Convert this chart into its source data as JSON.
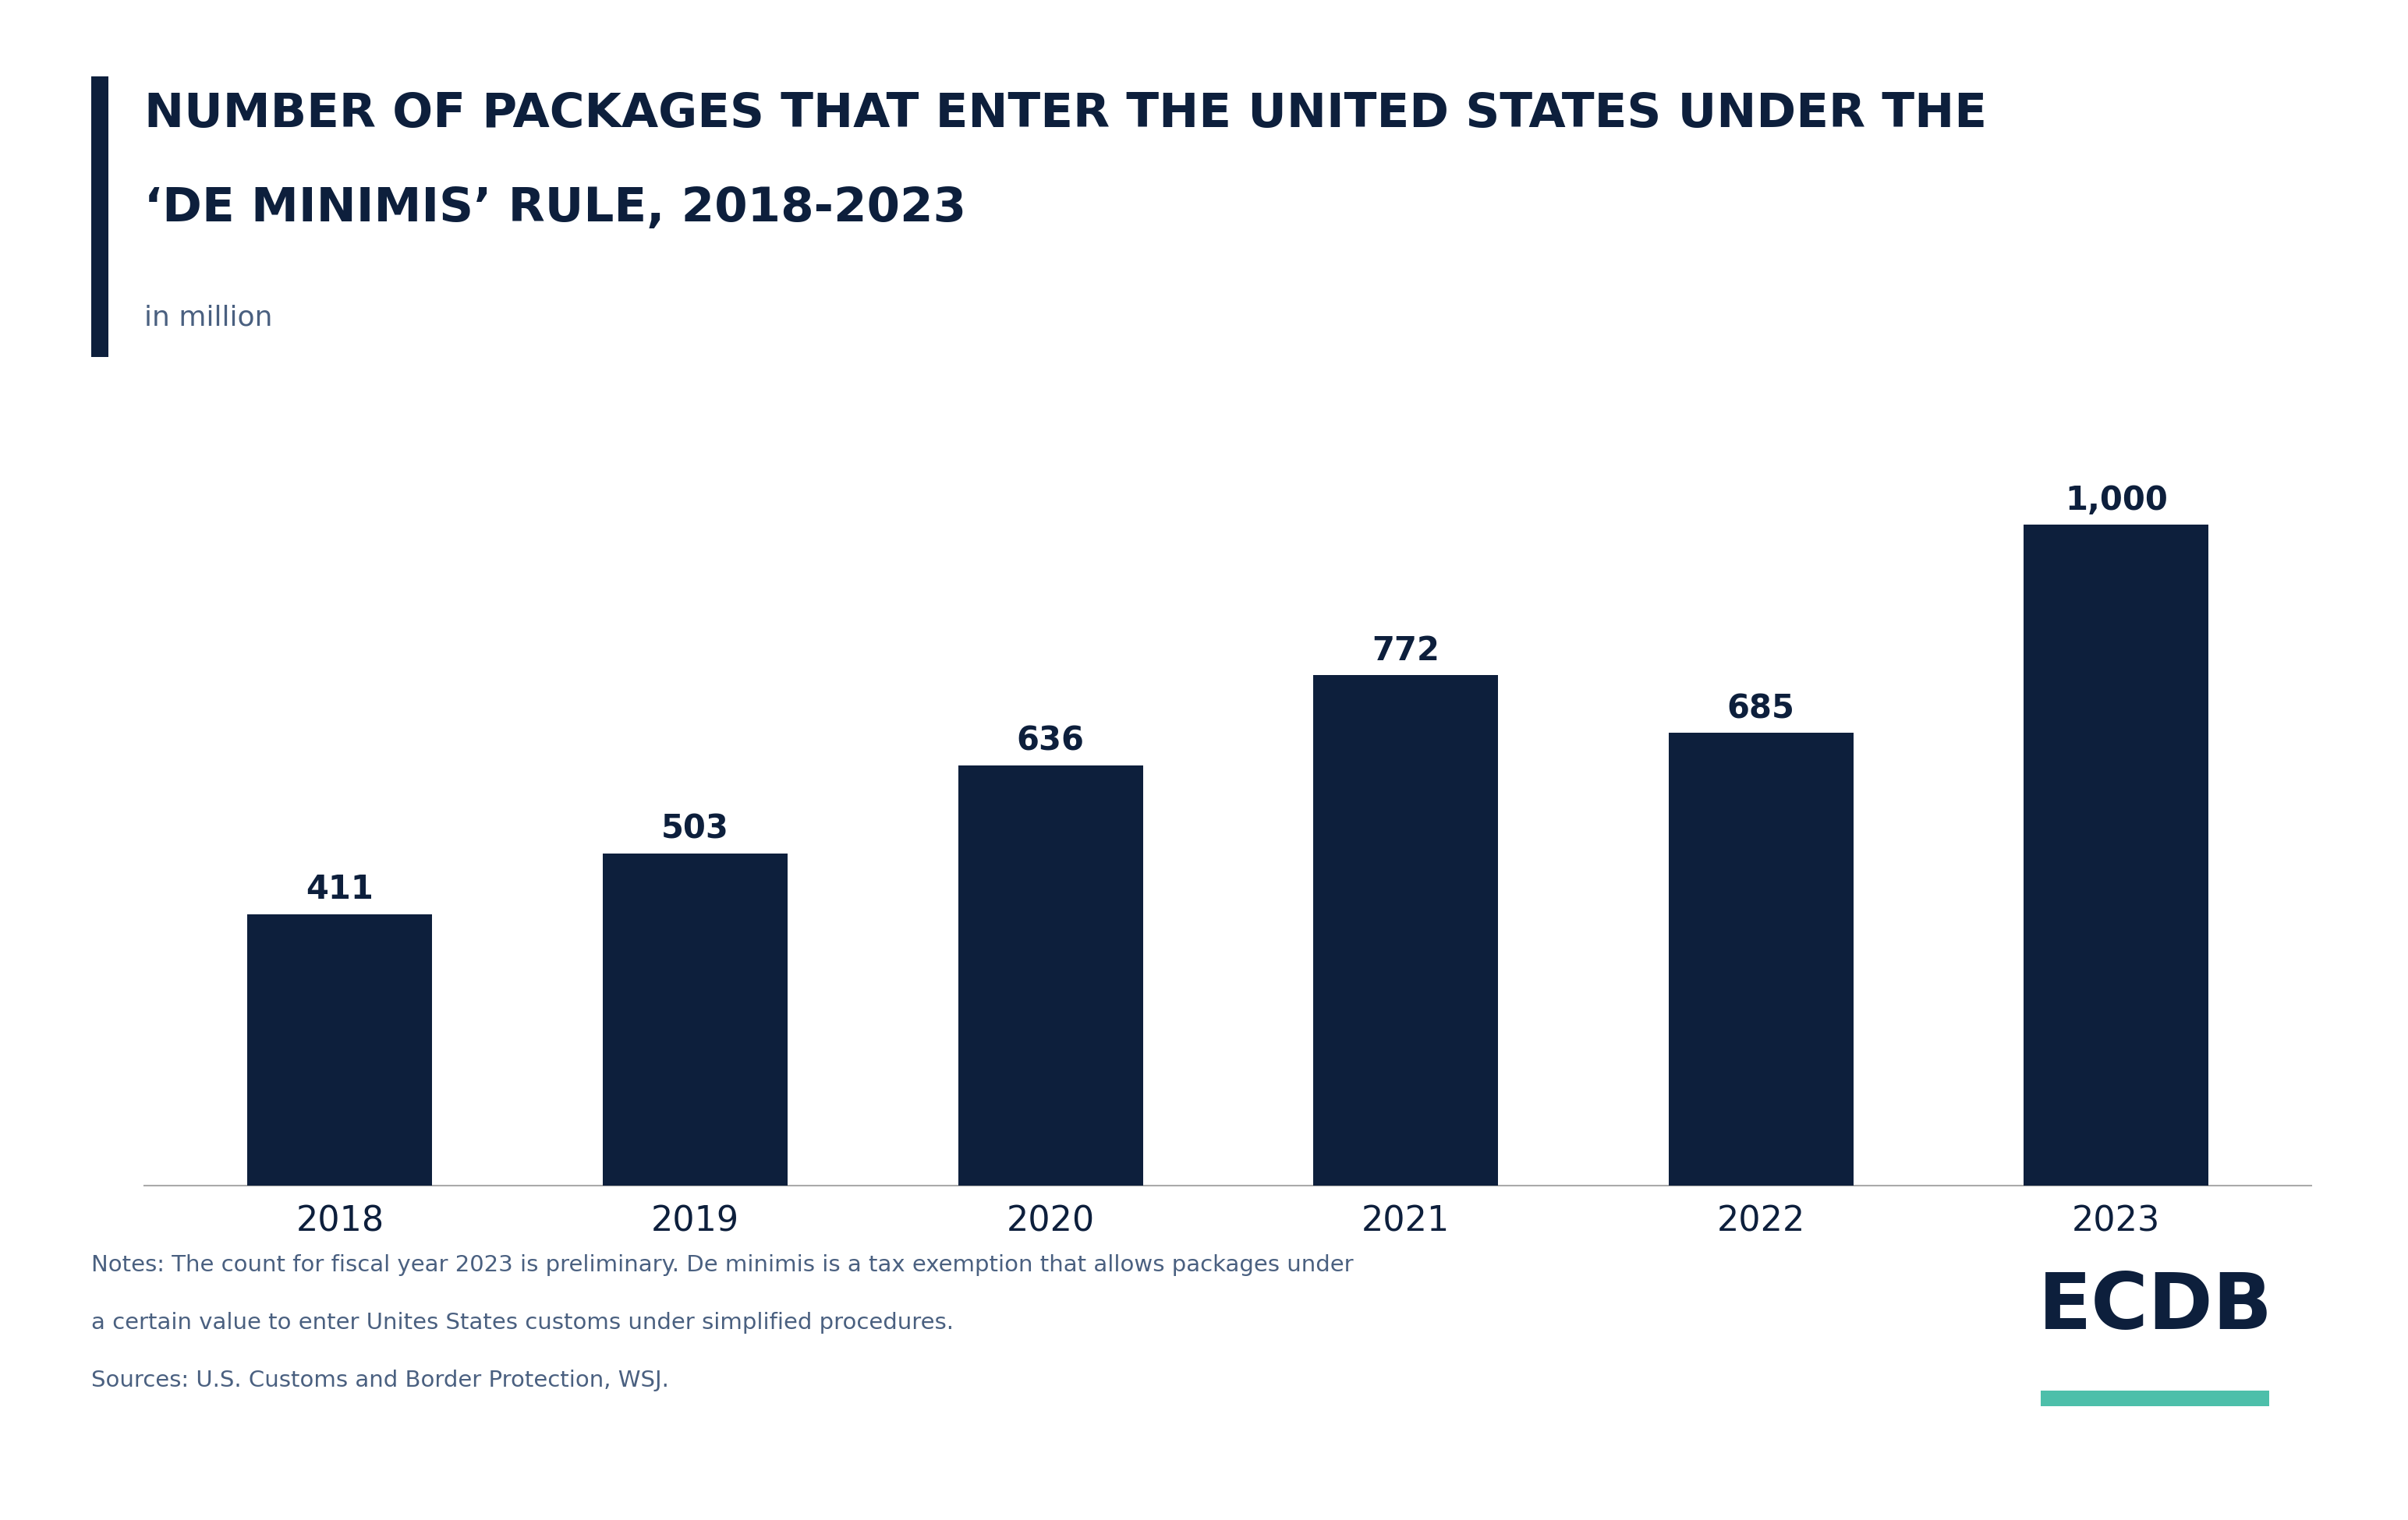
{
  "title_line1": "NUMBER OF PACKAGES THAT ENTER THE UNITED STATES UNDER THE",
  "title_line2": "‘DE MINIMIS’ RULE, 2018-2023",
  "subtitle": "in million",
  "categories": [
    "2018",
    "2019",
    "2020",
    "2021",
    "2022",
    "2023"
  ],
  "values": [
    411,
    503,
    636,
    772,
    685,
    1000
  ],
  "bar_color": "#0d1f3c",
  "bar_labels": [
    "411",
    "503",
    "636",
    "772",
    "685",
    "1,000"
  ],
  "title_color": "#0d1f3c",
  "subtitle_color": "#4a6080",
  "axis_color": "#0d1f3c",
  "bar_label_color": "#0d1f3c",
  "accent_bar_color": "#0d1f3c",
  "notes_line1": "Notes: The count for fiscal year 2023 is preliminary. De minimis is a tax exemption that allows packages under",
  "notes_line2": "a certain value to enter Unites States customs under simplified procedures.",
  "notes_line3": "Sources: U.S. Customs and Border Protection, WSJ.",
  "notes_color": "#4a6080",
  "ecdb_color": "#0d1f3c",
  "ecdb_underline_color": "#4dbfaa",
  "background_color": "#ffffff",
  "ylim": [
    0,
    1150
  ]
}
